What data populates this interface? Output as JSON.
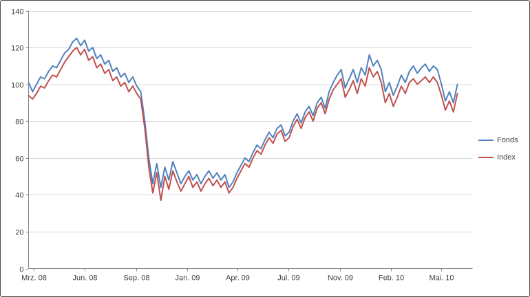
{
  "chart_data": {
    "type": "line",
    "title": "",
    "xlabel": "",
    "ylabel": "",
    "ylim": [
      0,
      140
    ],
    "ytick_step": 20,
    "y_tick_labels": [
      "0",
      "20",
      "40",
      "60",
      "80",
      "100",
      "120",
      "140"
    ],
    "grid": true,
    "legend_position": "right",
    "x_ticks": [
      {
        "label": "Mrz. 08",
        "pos": 0.011
      },
      {
        "label": "Jun. 08",
        "pos": 0.126
      },
      {
        "label": "Sep. 08",
        "pos": 0.242
      },
      {
        "label": "Jan. 09",
        "pos": 0.357
      },
      {
        "label": "Apr. 09",
        "pos": 0.471
      },
      {
        "label": "Jul. 09",
        "pos": 0.586
      },
      {
        "label": "Nov. 09",
        "pos": 0.701
      },
      {
        "label": "Feb. 10",
        "pos": 0.816
      },
      {
        "label": "Mai. 10",
        "pos": 0.93
      }
    ],
    "series": [
      {
        "name": "Fonds",
        "color": "#4F81BD",
        "values": [
          101,
          96,
          100,
          104,
          103,
          107,
          110,
          109,
          113,
          117,
          119,
          123,
          125,
          121,
          124,
          118,
          120,
          114,
          116,
          111,
          113,
          107,
          109,
          104,
          106,
          101,
          104,
          99,
          96,
          80,
          60,
          46,
          57,
          44,
          55,
          48,
          58,
          52,
          46,
          50,
          53,
          48,
          51,
          46,
          50,
          53,
          49,
          52,
          48,
          51,
          44,
          47,
          52,
          56,
          60,
          58,
          63,
          67,
          65,
          70,
          74,
          71,
          76,
          78,
          72,
          74,
          80,
          84,
          79,
          85,
          88,
          83,
          90,
          93,
          87,
          96,
          101,
          105,
          108,
          98,
          103,
          108,
          101,
          109,
          105,
          116,
          110,
          113,
          108,
          96,
          101,
          94,
          99,
          105,
          101,
          107,
          110,
          106,
          109,
          111,
          107,
          110,
          108,
          100,
          91,
          96,
          90,
          100
        ]
      },
      {
        "name": "Index",
        "color": "#C0504D",
        "values": [
          94,
          92,
          95,
          99,
          98,
          102,
          105,
          104,
          108,
          112,
          115,
          118,
          120,
          116,
          119,
          113,
          115,
          109,
          111,
          106,
          108,
          102,
          104,
          99,
          101,
          96,
          99,
          95,
          92,
          76,
          55,
          41,
          52,
          37,
          50,
          43,
          53,
          47,
          42,
          46,
          50,
          44,
          47,
          42,
          46,
          49,
          45,
          48,
          44,
          47,
          41,
          44,
          49,
          53,
          57,
          55,
          60,
          64,
          62,
          67,
          71,
          68,
          73,
          75,
          69,
          71,
          77,
          81,
          76,
          82,
          85,
          80,
          87,
          90,
          84,
          92,
          97,
          100,
          103,
          93,
          97,
          102,
          95,
          103,
          99,
          109,
          104,
          107,
          101,
          90,
          95,
          88,
          93,
          99,
          95,
          101,
          103,
          100,
          102,
          104,
          101,
          104,
          101,
          94,
          86,
          91,
          85,
          95
        ]
      }
    ],
    "colors": {
      "gridline": "#D9D9D9",
      "axis": "#868686",
      "text": "#3F3F3F",
      "frame_border": "#4A4A4A",
      "background": "#FFFFFF"
    }
  },
  "legend": {
    "items": [
      {
        "label": "Fonds"
      },
      {
        "label": "Index"
      }
    ]
  }
}
